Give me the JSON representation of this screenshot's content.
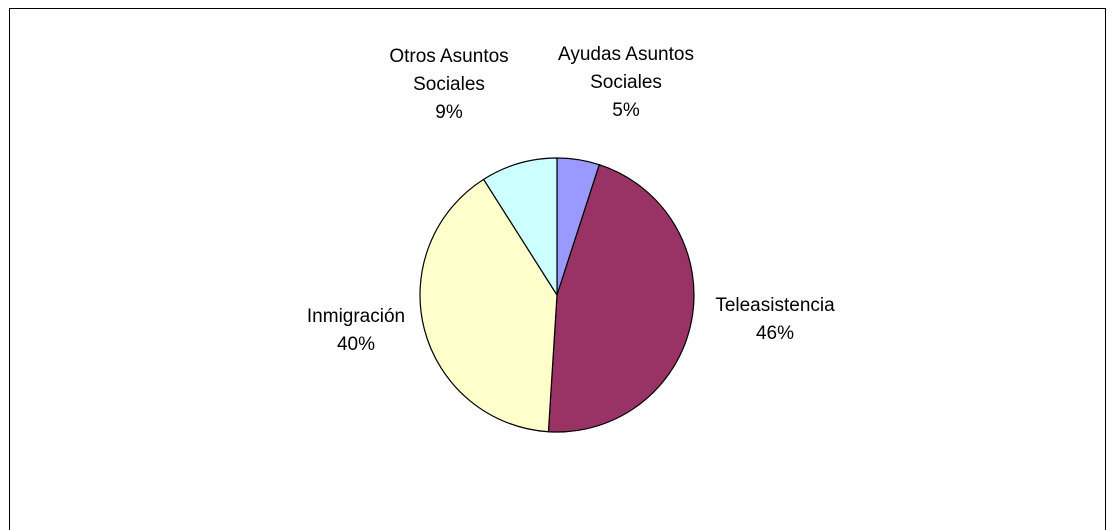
{
  "chart_data": {
    "type": "pie",
    "title": "",
    "slices": [
      {
        "name": "Ayudas Asuntos Sociales",
        "label_lines": [
          "Ayudas Asuntos",
          "Sociales"
        ],
        "percent_label": "5%",
        "value": 5,
        "color": "#9999ff"
      },
      {
        "name": "Teleasistencia",
        "label_lines": [
          "Teleasistencia"
        ],
        "percent_label": "46%",
        "value": 46,
        "color": "#993366"
      },
      {
        "name": "Inmigración",
        "label_lines": [
          "Inmigración"
        ],
        "percent_label": "40%",
        "value": 40,
        "color": "#ffffcc"
      },
      {
        "name": "Otros Asuntos Sociales",
        "label_lines": [
          "Otros Asuntos",
          "Sociales"
        ],
        "percent_label": "9%",
        "value": 9,
        "color": "#ccffff"
      }
    ],
    "start": "12 o'clock",
    "direction": "clockwise",
    "legend": "none",
    "slice_border_color": "#000000"
  }
}
